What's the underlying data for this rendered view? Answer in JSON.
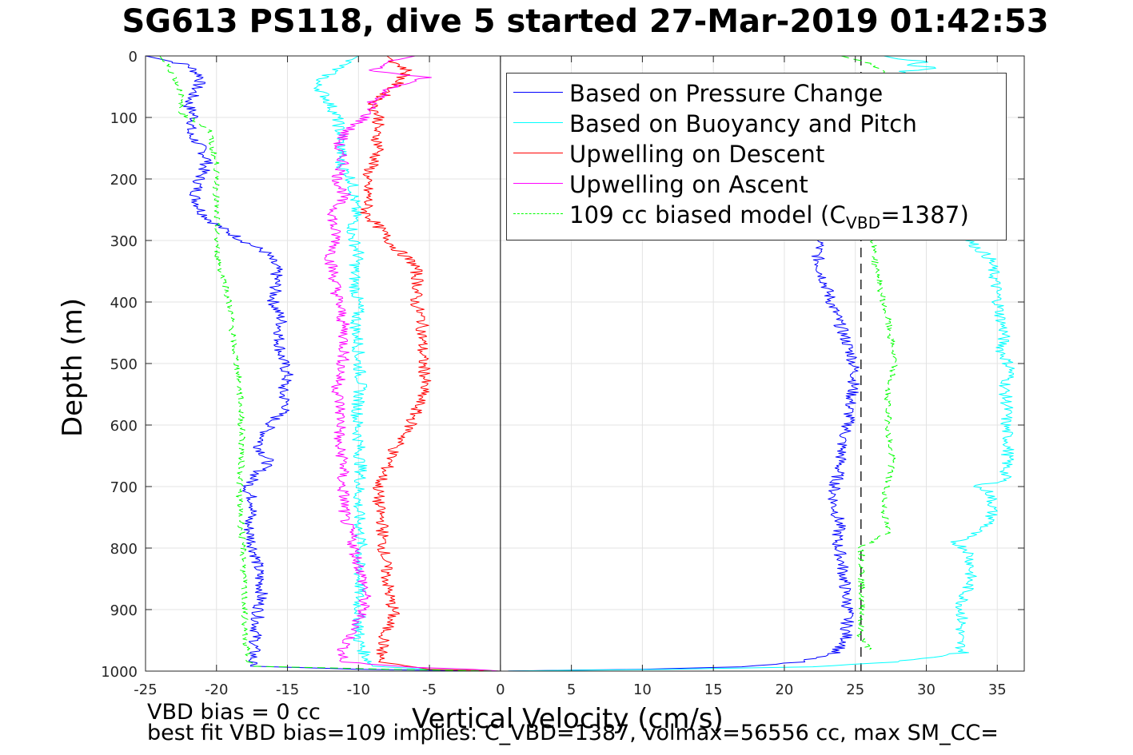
{
  "title": "SG613 PS118, dive 5 started 27-Mar-2019 01:42:53",
  "footer": {
    "line1": "VBD bias = 0 cc",
    "line2": "best fit VBD bias=109 implies: C_VBD=1387, volmax=56556 cc, max SM_CC="
  },
  "legend": {
    "items": [
      {
        "label": "Based on Pressure Change",
        "color": "#0000ff"
      },
      {
        "label": "Based on Buoyancy and Pitch",
        "color": "#00ffff"
      },
      {
        "label": "Upwelling on Descent",
        "color": "#ff0000"
      },
      {
        "label": "Upwelling on Ascent",
        "color": "#ff00ff"
      }
    ],
    "model": {
      "prefix": "109 cc biased model (C",
      "sub": "VBD",
      "suffix": "=1387)",
      "color": "#00ff00"
    }
  },
  "chart_data": {
    "type": "line",
    "title": "SG613 PS118, dive 5 started 27-Mar-2019 01:42:53",
    "xlabel": "Vertical Velocity (cm/s)",
    "ylabel": "Depth (m)",
    "xlim": [
      -25,
      36.9
    ],
    "ylim": [
      0,
      1000
    ],
    "y_reversed": true,
    "grid": true,
    "legend_position": "top-right",
    "xticks": [
      -25,
      -20,
      -15,
      -10,
      -5,
      0,
      5,
      10,
      15,
      20,
      25,
      30,
      35
    ],
    "yticks": [
      0,
      100,
      200,
      300,
      400,
      500,
      600,
      700,
      800,
      900,
      1000
    ],
    "reference_lines": [
      {
        "orientation": "vertical",
        "x": 0,
        "color": "#000000",
        "style": "solid"
      },
      {
        "orientation": "vertical",
        "x": 25.4,
        "color": "#000000",
        "style": "dashed"
      }
    ],
    "series": [
      {
        "name": "Based on Pressure Change",
        "color": "#0000ff",
        "segments": [
          {
            "depth": [
              0,
              15,
              35,
              55,
              80,
              100,
              125,
              145,
              170,
              200,
              230,
              255,
              275,
              295,
              320,
              345,
              370,
              400,
              430,
              460,
              490,
              520,
              545,
              570,
              590,
              610,
              635,
              660,
              685,
              705,
              730,
              760,
              790,
              815,
              845,
              870,
              895,
              930,
              960,
              975,
              992,
              997,
              1000
            ],
            "velocity": [
              -25,
              -22,
              -21,
              -21.5,
              -22,
              -21.5,
              -22,
              -21.2,
              -20.6,
              -21.2,
              -21.5,
              -21,
              -20,
              -18.5,
              -16.5,
              -15.8,
              -15.8,
              -16,
              -15.4,
              -15.6,
              -15.4,
              -15,
              -15.4,
              -15,
              -15.9,
              -16.5,
              -17,
              -16.3,
              -17.4,
              -17.8,
              -17.3,
              -17.8,
              -17.5,
              -17.2,
              -17,
              -16.8,
              -17,
              -17.2,
              -17.3,
              -17.4,
              -17.6,
              -10,
              -1
            ]
          },
          {
            "depth": [
              300,
              320,
              345,
              370,
              400,
              430,
              460,
              490,
              520,
              545,
              570,
              600,
              625,
              650,
              680,
              705,
              730,
              760,
              790,
              815,
              845,
              870,
              900,
              930,
              955,
              970,
              985,
              993,
              997,
              1000
            ],
            "velocity": [
              22.6,
              22.3,
              22.5,
              22.9,
              23.3,
              23.8,
              24.3,
              24.8,
              25,
              24.8,
              24.6,
              24.5,
              24.1,
              24,
              23.8,
              23.5,
              23.5,
              23.9,
              23.7,
              24,
              24.2,
              24.3,
              24.5,
              24.4,
              24.3,
              23.5,
              21,
              17,
              10,
              0
            ]
          }
        ]
      },
      {
        "name": "Based on Buoyancy and Pitch",
        "color": "#00ffff",
        "segments": [
          {
            "depth": [
              0,
              20,
              45,
              70,
              100,
              125,
              150,
              175,
              200,
              230,
              260,
              290,
              320,
              350,
              380,
              410,
              440,
              470,
              500,
              530,
              560,
              590,
              620,
              650,
              680,
              710,
              740,
              770,
              800,
              830,
              860,
              890,
              920,
              950,
              975,
              992,
              997,
              1000
            ],
            "velocity": [
              -10,
              -11.5,
              -13,
              -12.2,
              -11.5,
              -11.3,
              -11.2,
              -11.3,
              -10.5,
              -10.3,
              -10.2,
              -10.5,
              -10,
              -10.3,
              -10.2,
              -10,
              -10.2,
              -10,
              -10,
              -9.8,
              -10,
              -10.1,
              -10,
              -9.9,
              -9.8,
              -10,
              -10,
              -9.9,
              -9.8,
              -10,
              -9.9,
              -10,
              -9.9,
              -10,
              -9.5,
              -9,
              -5,
              0
            ]
          },
          {
            "depth": [
              300,
              330,
              360,
              390,
              420,
              450,
              480,
              510,
              540,
              570,
              600,
              630,
              660,
              690,
              700,
              710,
              730,
              760,
              780,
              790,
              805,
              830,
              860,
              890,
              920,
              950,
              970,
              985,
              993,
              997,
              1000
            ],
            "velocity": [
              33,
              34.5,
              34.8,
              35,
              35.2,
              35.5,
              35.3,
              36,
              35.5,
              35.7,
              35.6,
              35.8,
              35.7,
              35.5,
              33.5,
              34.5,
              34.7,
              34.5,
              33,
              32,
              33,
              33.2,
              33,
              32.5,
              32.5,
              32.3,
              32.6,
              28,
              22,
              12,
              0
            ]
          },
          {
            "depth": [
              0,
              5,
              10,
              15,
              20,
              25,
              30
            ],
            "velocity": [
              27,
              28,
              30,
              29,
              31,
              28.5,
              28
            ]
          }
        ]
      },
      {
        "name": "Upwelling on Descent",
        "color": "#ff0000",
        "segments": [
          {
            "depth": [
              0,
              25,
              50,
              80,
              100,
              125,
              150,
              175,
              200,
              230,
              255,
              280,
              310,
              340,
              370,
              400,
              430,
              460,
              490,
              520,
              550,
              580,
              610,
              640,
              670,
              700,
              730,
              760,
              790,
              820,
              850,
              880,
              905,
              930,
              960,
              985,
              997,
              1000
            ],
            "velocity": [
              -8,
              -6.5,
              -7.5,
              -9,
              -8.5,
              -8.8,
              -8.5,
              -9,
              -9.5,
              -9.3,
              -9.5,
              -8.5,
              -7.5,
              -6,
              -5.8,
              -6,
              -5.5,
              -5.5,
              -5.5,
              -5.3,
              -5.5,
              -6,
              -6.5,
              -7.5,
              -8,
              -8.6,
              -8.6,
              -8.3,
              -8.3,
              -8.1,
              -8,
              -7.8,
              -7.5,
              -8,
              -8.3,
              -8.5,
              -5,
              0
            ]
          }
        ]
      },
      {
        "name": "Upwelling on Ascent",
        "color": "#ff00ff",
        "segments": [
          {
            "depth": [
              0,
              10,
              25,
              35,
              50,
              75,
              100,
              125,
              150,
              175,
              200,
              225,
              250,
              275,
              300,
              330,
              360,
              390,
              420,
              450,
              480,
              510,
              540,
              570,
              600,
              630,
              660,
              690,
              720,
              750,
              780,
              810,
              840,
              870,
              900,
              930,
              960,
              985,
              994,
              997,
              1000
            ],
            "velocity": [
              -6,
              -8,
              -9,
              -5,
              -7.5,
              -9,
              -9.5,
              -11,
              -11.5,
              -11,
              -11.5,
              -11,
              -11.7,
              -11.8,
              -11.5,
              -12,
              -11.7,
              -11.5,
              -11.2,
              -11,
              -11,
              -11.2,
              -11.5,
              -11.3,
              -11.2,
              -11.5,
              -11,
              -11.2,
              -11,
              -11,
              -10.5,
              -10.2,
              -9.8,
              -9.5,
              -9.7,
              -10.2,
              -11,
              -11.2,
              -6,
              -2,
              0
            ]
          }
        ]
      },
      {
        "name": "109 cc biased model",
        "color": "#00ff00",
        "dashed": true,
        "segments": [
          {
            "depth": [
              0,
              30,
              60,
              90,
              120,
              150,
              180,
              210,
              240,
              270,
              300,
              340,
              380,
              420,
              460,
              500,
              540,
              580,
              620,
              660,
              700,
              740,
              780,
              820,
              860,
              900,
              940,
              975,
              992,
              997,
              1000
            ],
            "velocity": [
              -24,
              -23,
              -22.5,
              -22.6,
              -20.5,
              -20.3,
              -20,
              -20,
              -20,
              -20,
              -20,
              -19.8,
              -19.3,
              -19,
              -18.8,
              -18.6,
              -18.4,
              -18.3,
              -18.2,
              -18.2,
              -18.4,
              -18.3,
              -18.2,
              -18.1,
              -18.1,
              -18,
              -18,
              -17.8,
              -17.5,
              -8,
              0
            ]
          },
          {
            "depth": [
              0,
              12,
              25,
              300,
              340,
              380,
              420,
              460,
              500,
              540,
              580,
              620,
              660,
              700,
              740,
              775,
              800,
              830,
              860,
              900,
              940,
              965
            ],
            "velocity": [
              24,
              26,
              27,
              26.3,
              26.4,
              26.8,
              27.2,
              27.5,
              27.8,
              27.3,
              27.3,
              27.4,
              27.6,
              27.2,
              27,
              27.3,
              25.4,
              25.5,
              25.4,
              25.5,
              25.3,
              26
            ]
          }
        ]
      }
    ]
  }
}
